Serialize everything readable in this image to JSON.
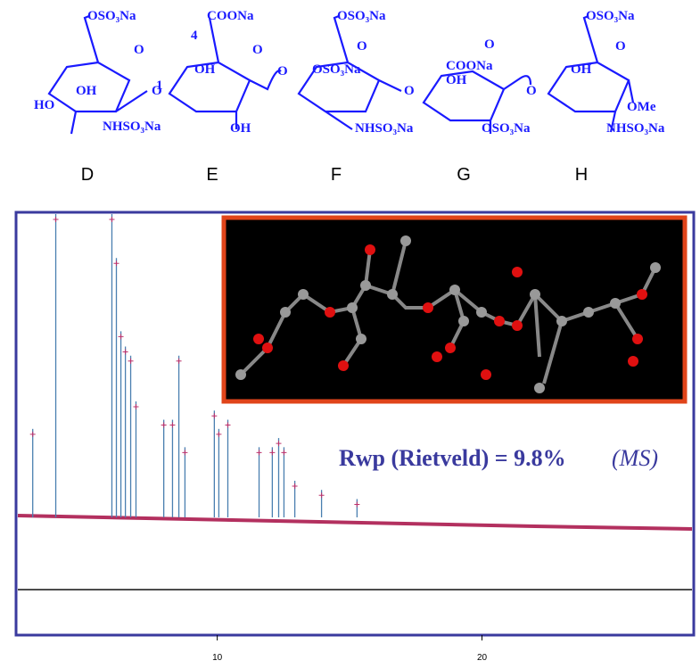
{
  "structure": {
    "labels": [
      "OSO₃Na",
      "O",
      "OH",
      "1",
      "HO",
      "NHSO₃Na",
      "O",
      "COONa",
      "O",
      "OH",
      "4",
      "OH",
      "O",
      "OSO₃Na",
      "O",
      "OSO₃Na",
      "NHSO₃Na",
      "O",
      "O",
      "COONa",
      "OH",
      "OSO₃Na",
      "O",
      "OSO₃Na",
      "O",
      "OH",
      "OMe",
      "NHSO₃Na"
    ]
  },
  "residues": [
    "D",
    "E",
    "F",
    "G",
    "H"
  ],
  "plot": {
    "xlim": [
      2.4,
      28
    ],
    "xticks": [
      10,
      20
    ],
    "ylim": [
      0,
      100
    ],
    "peaks": {
      "x": [
        3.03,
        3.9,
        6.02,
        6.19,
        6.36,
        6.53,
        6.73,
        6.93,
        7.98,
        8.31,
        8.55,
        8.78,
        9.89,
        10.06,
        10.4,
        11.58,
        12.08,
        12.32,
        12.52,
        12.93,
        13.94,
        15.28
      ],
      "y": [
        29,
        100,
        100,
        85,
        61,
        56,
        53,
        38,
        32,
        32,
        53,
        23,
        35,
        29,
        32,
        23,
        23,
        26,
        23,
        12,
        9,
        6
      ]
    }
  },
  "fit": {
    "label": "Rwp (Rietveld) = 9.8%",
    "method": "(MS)"
  }
}
